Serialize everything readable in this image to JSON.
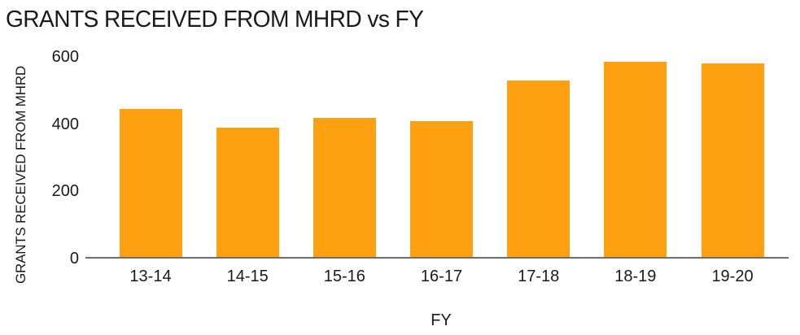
{
  "title": "GRANTS RECEIVED FROM MHRD vs FY",
  "chart_data": {
    "type": "bar",
    "title": "GRANTS RECEIVED FROM MHRD vs FY",
    "xlabel": "FY",
    "ylabel": "GRANTS RECEIVED FROM MHRD",
    "categories": [
      "13-14",
      "14-15",
      "15-16",
      "16-17",
      "17-18",
      "18-19",
      "19-20"
    ],
    "values": [
      440,
      385,
      415,
      405,
      525,
      580,
      575
    ],
    "ylim": [
      0,
      600
    ],
    "yticks": [
      0,
      200,
      400,
      600
    ],
    "grid": false,
    "legend": false,
    "bar_color": "#FFA010",
    "axis_color": "#6E6E6E",
    "text_color": "#1A1A1A"
  }
}
